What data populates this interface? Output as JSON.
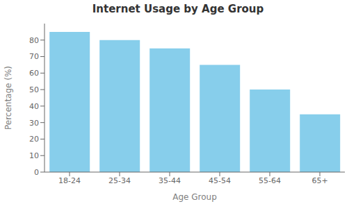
{
  "chart_data": {
    "type": "bar",
    "title": "Internet Usage by Age Group",
    "xlabel": "Age Group",
    "ylabel": "Percentage (%)",
    "categories": [
      "18-24",
      "25-34",
      "35-44",
      "45-54",
      "55-64",
      "65+"
    ],
    "values": [
      85,
      80,
      75,
      65,
      50,
      35
    ],
    "color": "#87CEEB",
    "ylim": [
      0,
      90
    ],
    "yticks": [
      0,
      10,
      20,
      30,
      40,
      50,
      60,
      70,
      80
    ],
    "grid": false
  }
}
